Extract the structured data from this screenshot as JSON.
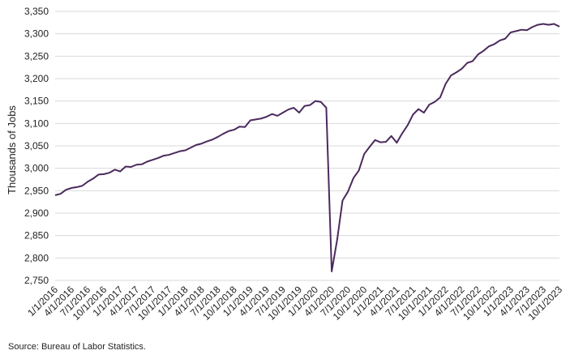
{
  "source_note": "Source: Bureau of Labor Statistics.",
  "colors": {
    "series": "#4b2a5c",
    "grid": "#d9d9d9",
    "text": "#222222"
  },
  "chart_data": {
    "type": "line",
    "ylabel": "Thousands of Jobs",
    "xlabel": "",
    "title": "",
    "ylim": [
      2750,
      3350
    ],
    "yticks": [
      2750,
      2800,
      2850,
      2900,
      2950,
      3000,
      3050,
      3100,
      3150,
      3200,
      3250,
      3300,
      3350
    ],
    "ytick_labels": [
      "2,750",
      "2,800",
      "2,850",
      "2,900",
      "2,950",
      "3,000",
      "3,050",
      "3,100",
      "3,150",
      "3,200",
      "3,250",
      "3,300",
      "3,350"
    ],
    "xtick_labels": [
      "1/1/2016",
      "4/1/2016",
      "7/1/2016",
      "10/1/2016",
      "1/1/2017",
      "4/1/2017",
      "7/1/2017",
      "10/1/2017",
      "1/1/2018",
      "4/1/2018",
      "7/1/2018",
      "10/1/2018",
      "1/1/2019",
      "4/1/2019",
      "7/1/2019",
      "10/1/2019",
      "1/1/2020",
      "4/1/2020",
      "7/1/2020",
      "10/1/2020",
      "1/1/2021",
      "4/1/2021",
      "7/1/2021",
      "10/1/2021",
      "1/1/2022",
      "4/1/2022",
      "7/1/2022",
      "10/1/2022",
      "1/1/2023",
      "4/1/2023",
      "7/1/2023",
      "10/1/2023"
    ],
    "grid": "horizontal",
    "legend": "none",
    "x_start": "2016-01",
    "x_end": "2023-10",
    "x_frequency": "monthly",
    "values": [
      2940,
      2943,
      2952,
      2956,
      2958,
      2961,
      2970,
      2977,
      2986,
      2987,
      2990,
      2997,
      2993,
      3004,
      3003,
      3008,
      3009,
      3015,
      3019,
      3023,
      3028,
      3030,
      3034,
      3038,
      3040,
      3046,
      3052,
      3055,
      3060,
      3064,
      3070,
      3077,
      3083,
      3086,
      3093,
      3092,
      3107,
      3109,
      3111,
      3115,
      3121,
      3117,
      3124,
      3131,
      3135,
      3124,
      3139,
      3141,
      3150,
      3148,
      3135,
      2770,
      2840,
      2928,
      2948,
      2978,
      2995,
      3032,
      3048,
      3063,
      3058,
      3059,
      3072,
      3057,
      3078,
      3096,
      3120,
      3132,
      3124,
      3142,
      3148,
      3158,
      3188,
      3207,
      3214,
      3222,
      3235,
      3239,
      3254,
      3262,
      3272,
      3277,
      3285,
      3289,
      3303,
      3306,
      3309,
      3308,
      3315,
      3320,
      3322,
      3320,
      3322,
      3316
    ]
  }
}
